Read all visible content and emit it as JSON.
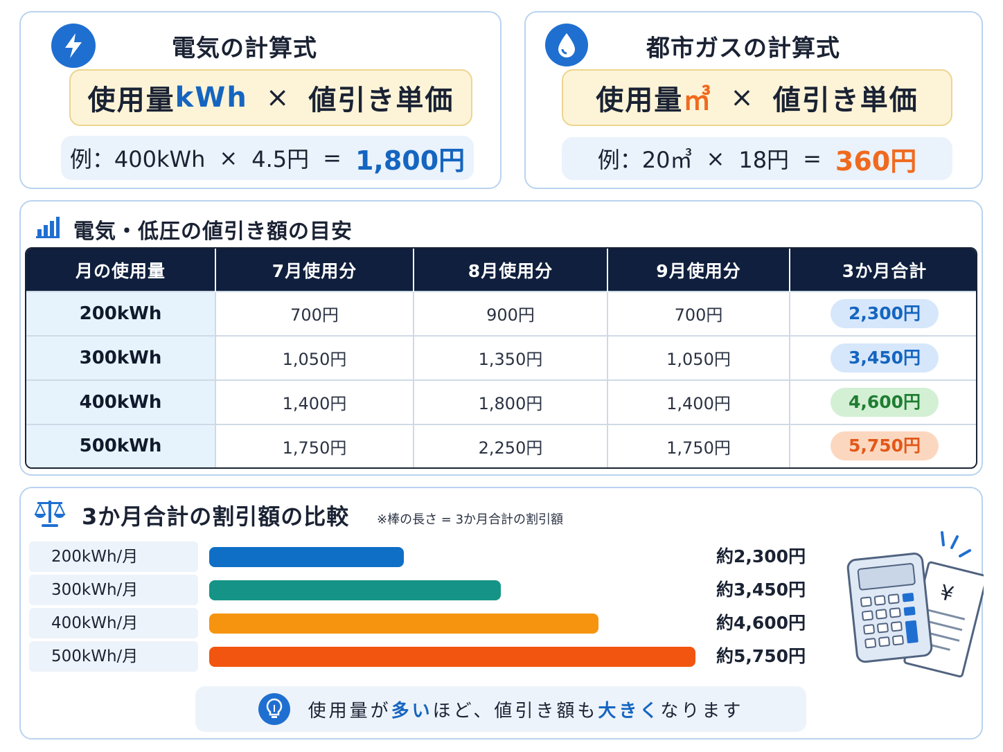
{
  "electric_formula": {
    "title": "電気の計算式",
    "formula_prefix": "使用量",
    "formula_unit": "kWh",
    "formula_times": "×",
    "formula_suffix": "値引き単価",
    "example_prefix": "例：400kWh",
    "example_times": "×",
    "example_rate": "4.5円",
    "example_equals": "=",
    "example_result": "1,800円",
    "icon": "lightning-icon"
  },
  "gas_formula": {
    "title": "都市ガスの計算式",
    "formula_prefix": "使用量",
    "formula_unit": "㎥",
    "formula_times": "×",
    "formula_suffix": "値引き単価",
    "example_prefix": "例：20㎥",
    "example_times": "×",
    "example_rate": "18円",
    "example_equals": "=",
    "example_result": "360円",
    "icon": "water-drop-icon"
  },
  "discount_table": {
    "title": "電気・低圧の値引き額の目安",
    "icon": "bar-chart-icon",
    "headers": [
      "月の使用量",
      "7月使用分",
      "8月使用分",
      "9月使用分",
      "3か月合計"
    ],
    "rows": [
      {
        "usage": "200kWh",
        "jul": "700円",
        "aug": "900円",
        "sep": "700円",
        "total": "2,300円"
      },
      {
        "usage": "300kWh",
        "jul": "1,050円",
        "aug": "1,350円",
        "sep": "1,050円",
        "total": "3,450円"
      },
      {
        "usage": "400kWh",
        "jul": "1,400円",
        "aug": "1,800円",
        "sep": "1,400円",
        "total": "4,600円"
      },
      {
        "usage": "500kWh",
        "jul": "1,750円",
        "aug": "2,250円",
        "sep": "1,750円",
        "total": "5,750円"
      }
    ]
  },
  "comparison": {
    "title": "3か月合計の割引額の比較",
    "note": "※棒の長さ = 3か月合計の割引額",
    "icon": "scale-icon",
    "bars": [
      {
        "label": "200kWh/月",
        "value": 2300,
        "value_label": "約2,300円",
        "color": "#0f6fc6"
      },
      {
        "label": "300kWh/月",
        "value": 3450,
        "value_label": "約3,450円",
        "color": "#149386"
      },
      {
        "label": "400kWh/月",
        "value": 4600,
        "value_label": "約4,600円",
        "color": "#f7940f"
      },
      {
        "label": "500kWh/月",
        "value": 5750,
        "value_label": "約5,750円",
        "color": "#f2550f"
      }
    ],
    "tip": {
      "part1": "使用量が",
      "em1": "多い",
      "part2": "ほど、値引き額も",
      "em2": "大きく",
      "part3": "なります",
      "icon": "lightbulb-icon"
    },
    "illustration": "calculator-receipt-icon"
  }
}
